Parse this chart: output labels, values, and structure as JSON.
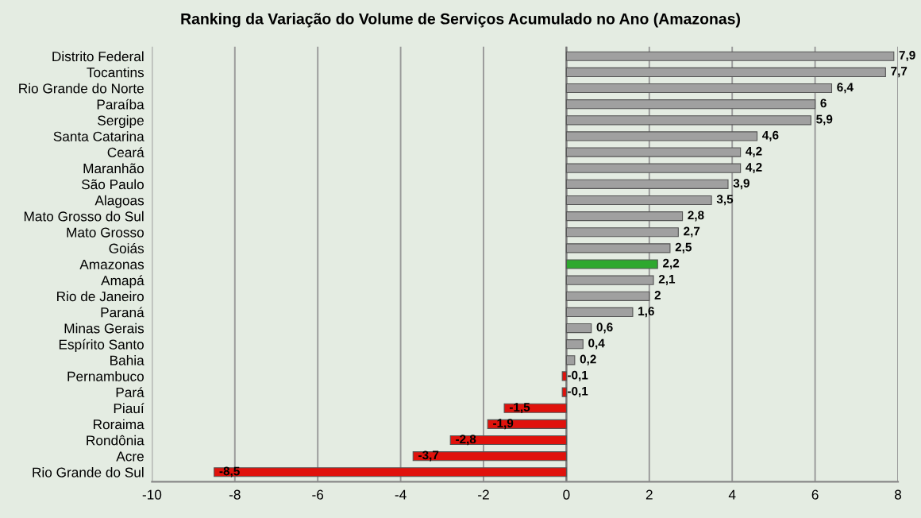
{
  "chart_data": {
    "type": "bar",
    "orientation": "horizontal",
    "title": "Ranking da Variação do Volume de Serviços Acumulado no Ano (Amazonas)",
    "categories": [
      "Distrito Federal",
      "Tocantins",
      "Rio Grande do Norte",
      "Paraíba",
      "Sergipe",
      "Santa Catarina",
      "Ceará",
      "Maranhão",
      "São Paulo",
      "Alagoas",
      "Mato Grosso do Sul",
      "Mato Grosso",
      "Goiás",
      "Amazonas",
      "Amapá",
      "Rio de Janeiro",
      "Paraná",
      "Minas Gerais",
      "Espírito Santo",
      "Bahia",
      "Pernambuco",
      "Pará",
      "Piauí",
      "Roraima",
      "Rondônia",
      "Acre",
      "Rio Grande do Sul"
    ],
    "values": [
      7.9,
      7.7,
      6.4,
      6,
      5.9,
      4.6,
      4.2,
      4.2,
      3.9,
      3.5,
      2.8,
      2.7,
      2.5,
      2.2,
      2.1,
      2,
      1.6,
      0.6,
      0.4,
      0.2,
      -0.1,
      -0.1,
      -1.5,
      -1.9,
      -2.8,
      -3.7,
      -8.5
    ],
    "value_labels": [
      "7,9",
      "7,7",
      "6,4",
      "6",
      "5,9",
      "4,6",
      "4,2",
      "4,2",
      "3,9",
      "3,5",
      "2,8",
      "2,7",
      "2,5",
      "2,2",
      "2,1",
      "2",
      "1,6",
      "0,6",
      "0,4",
      "0,2",
      "-0,1",
      "-0,1",
      "-1,5",
      "-1,9",
      "-2,8",
      "-3,7",
      "-8,5"
    ],
    "colors": [
      "#a0a0a0",
      "#a0a0a0",
      "#a0a0a0",
      "#a0a0a0",
      "#a0a0a0",
      "#a0a0a0",
      "#a0a0a0",
      "#a0a0a0",
      "#a0a0a0",
      "#a0a0a0",
      "#a0a0a0",
      "#a0a0a0",
      "#a0a0a0",
      "#2ea82e",
      "#a0a0a0",
      "#a0a0a0",
      "#a0a0a0",
      "#a0a0a0",
      "#a0a0a0",
      "#a0a0a0",
      "#e0120c",
      "#e0120c",
      "#e0120c",
      "#e0120c",
      "#e0120c",
      "#e0120c",
      "#e0120c"
    ],
    "xlim": [
      -10,
      8
    ],
    "xticks": [
      -10,
      -8,
      -6,
      -4,
      -2,
      0,
      2,
      4,
      6,
      8
    ],
    "grid": "x",
    "legend": false
  }
}
